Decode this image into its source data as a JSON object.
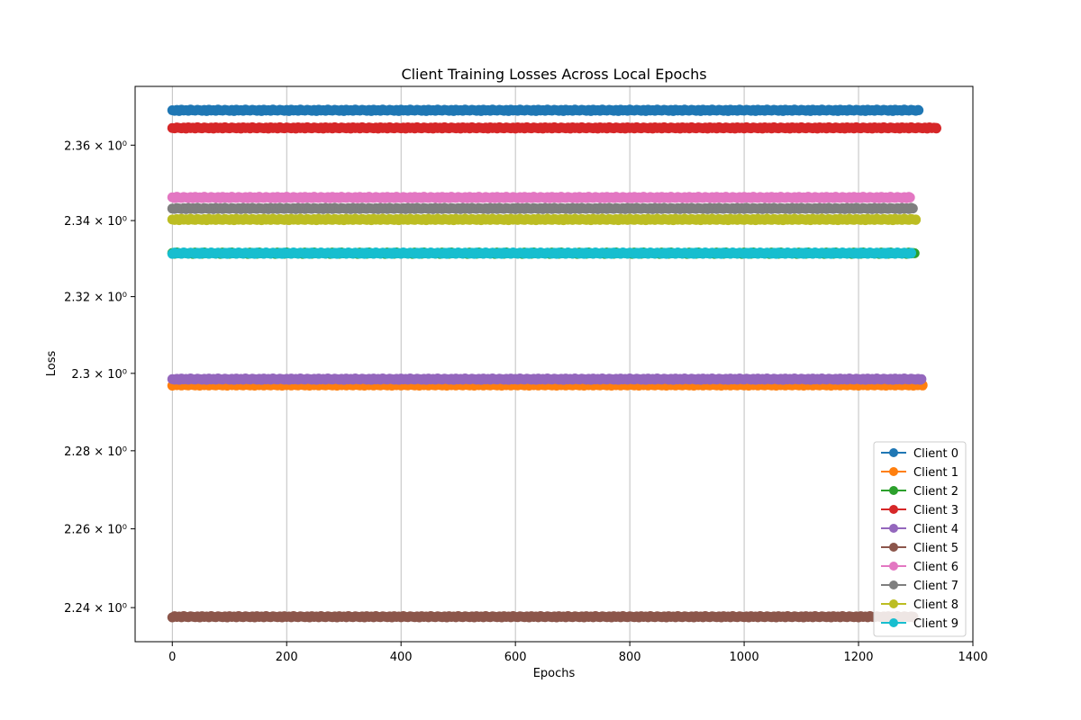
{
  "chart_data": {
    "type": "scatter",
    "title": "Client Training Losses Across Local Epochs",
    "xlabel": "Epochs",
    "ylabel": "Loss",
    "xlim": [
      -65,
      1400
    ],
    "ylim": [
      2.2314,
      2.3757
    ],
    "yscale": "log",
    "grid": "x-only",
    "legend_position": "lower-right",
    "x_ticks": [
      0,
      200,
      400,
      600,
      800,
      1000,
      1200,
      1400
    ],
    "y_ticks": [
      {
        "value": 2.24,
        "label": "2.24 × 10⁰"
      },
      {
        "value": 2.26,
        "label": "2.26 × 10⁰"
      },
      {
        "value": 2.28,
        "label": "2.28 × 10⁰"
      },
      {
        "value": 2.3,
        "label": "2.3 × 10⁰"
      },
      {
        "value": 2.32,
        "label": "2.32 × 10⁰"
      },
      {
        "value": 2.34,
        "label": "2.34 × 10⁰"
      },
      {
        "value": 2.36,
        "label": "2.36 × 10⁰"
      }
    ],
    "series": [
      {
        "name": "Client 0",
        "color": "#1f77b4",
        "loss": 2.3693,
        "x_start": 0,
        "x_end": 1305
      },
      {
        "name": "Client 1",
        "color": "#ff7f0e",
        "loss": 2.297,
        "x_start": 0,
        "x_end": 1312
      },
      {
        "name": "Client 2",
        "color": "#2ca02c",
        "loss": 2.3314,
        "x_start": 0,
        "x_end": 1298
      },
      {
        "name": "Client 3",
        "color": "#d62728",
        "loss": 2.3646,
        "x_start": 0,
        "x_end": 1336
      },
      {
        "name": "Client 4",
        "color": "#9467bd",
        "loss": 2.2985,
        "x_start": 0,
        "x_end": 1310
      },
      {
        "name": "Client 5",
        "color": "#8c564b",
        "loss": 2.2377,
        "x_start": 0,
        "x_end": 1296
      },
      {
        "name": "Client 6",
        "color": "#e377c2",
        "loss": 2.3461,
        "x_start": 0,
        "x_end": 1290
      },
      {
        "name": "Client 7",
        "color": "#7f7f7f",
        "loss": 2.3432,
        "x_start": 0,
        "x_end": 1295
      },
      {
        "name": "Client 8",
        "color": "#bcbd22",
        "loss": 2.3403,
        "x_start": 0,
        "x_end": 1300
      },
      {
        "name": "Client 9",
        "color": "#17becf",
        "loss": 2.3314,
        "x_start": 0,
        "x_end": 1292
      }
    ]
  }
}
